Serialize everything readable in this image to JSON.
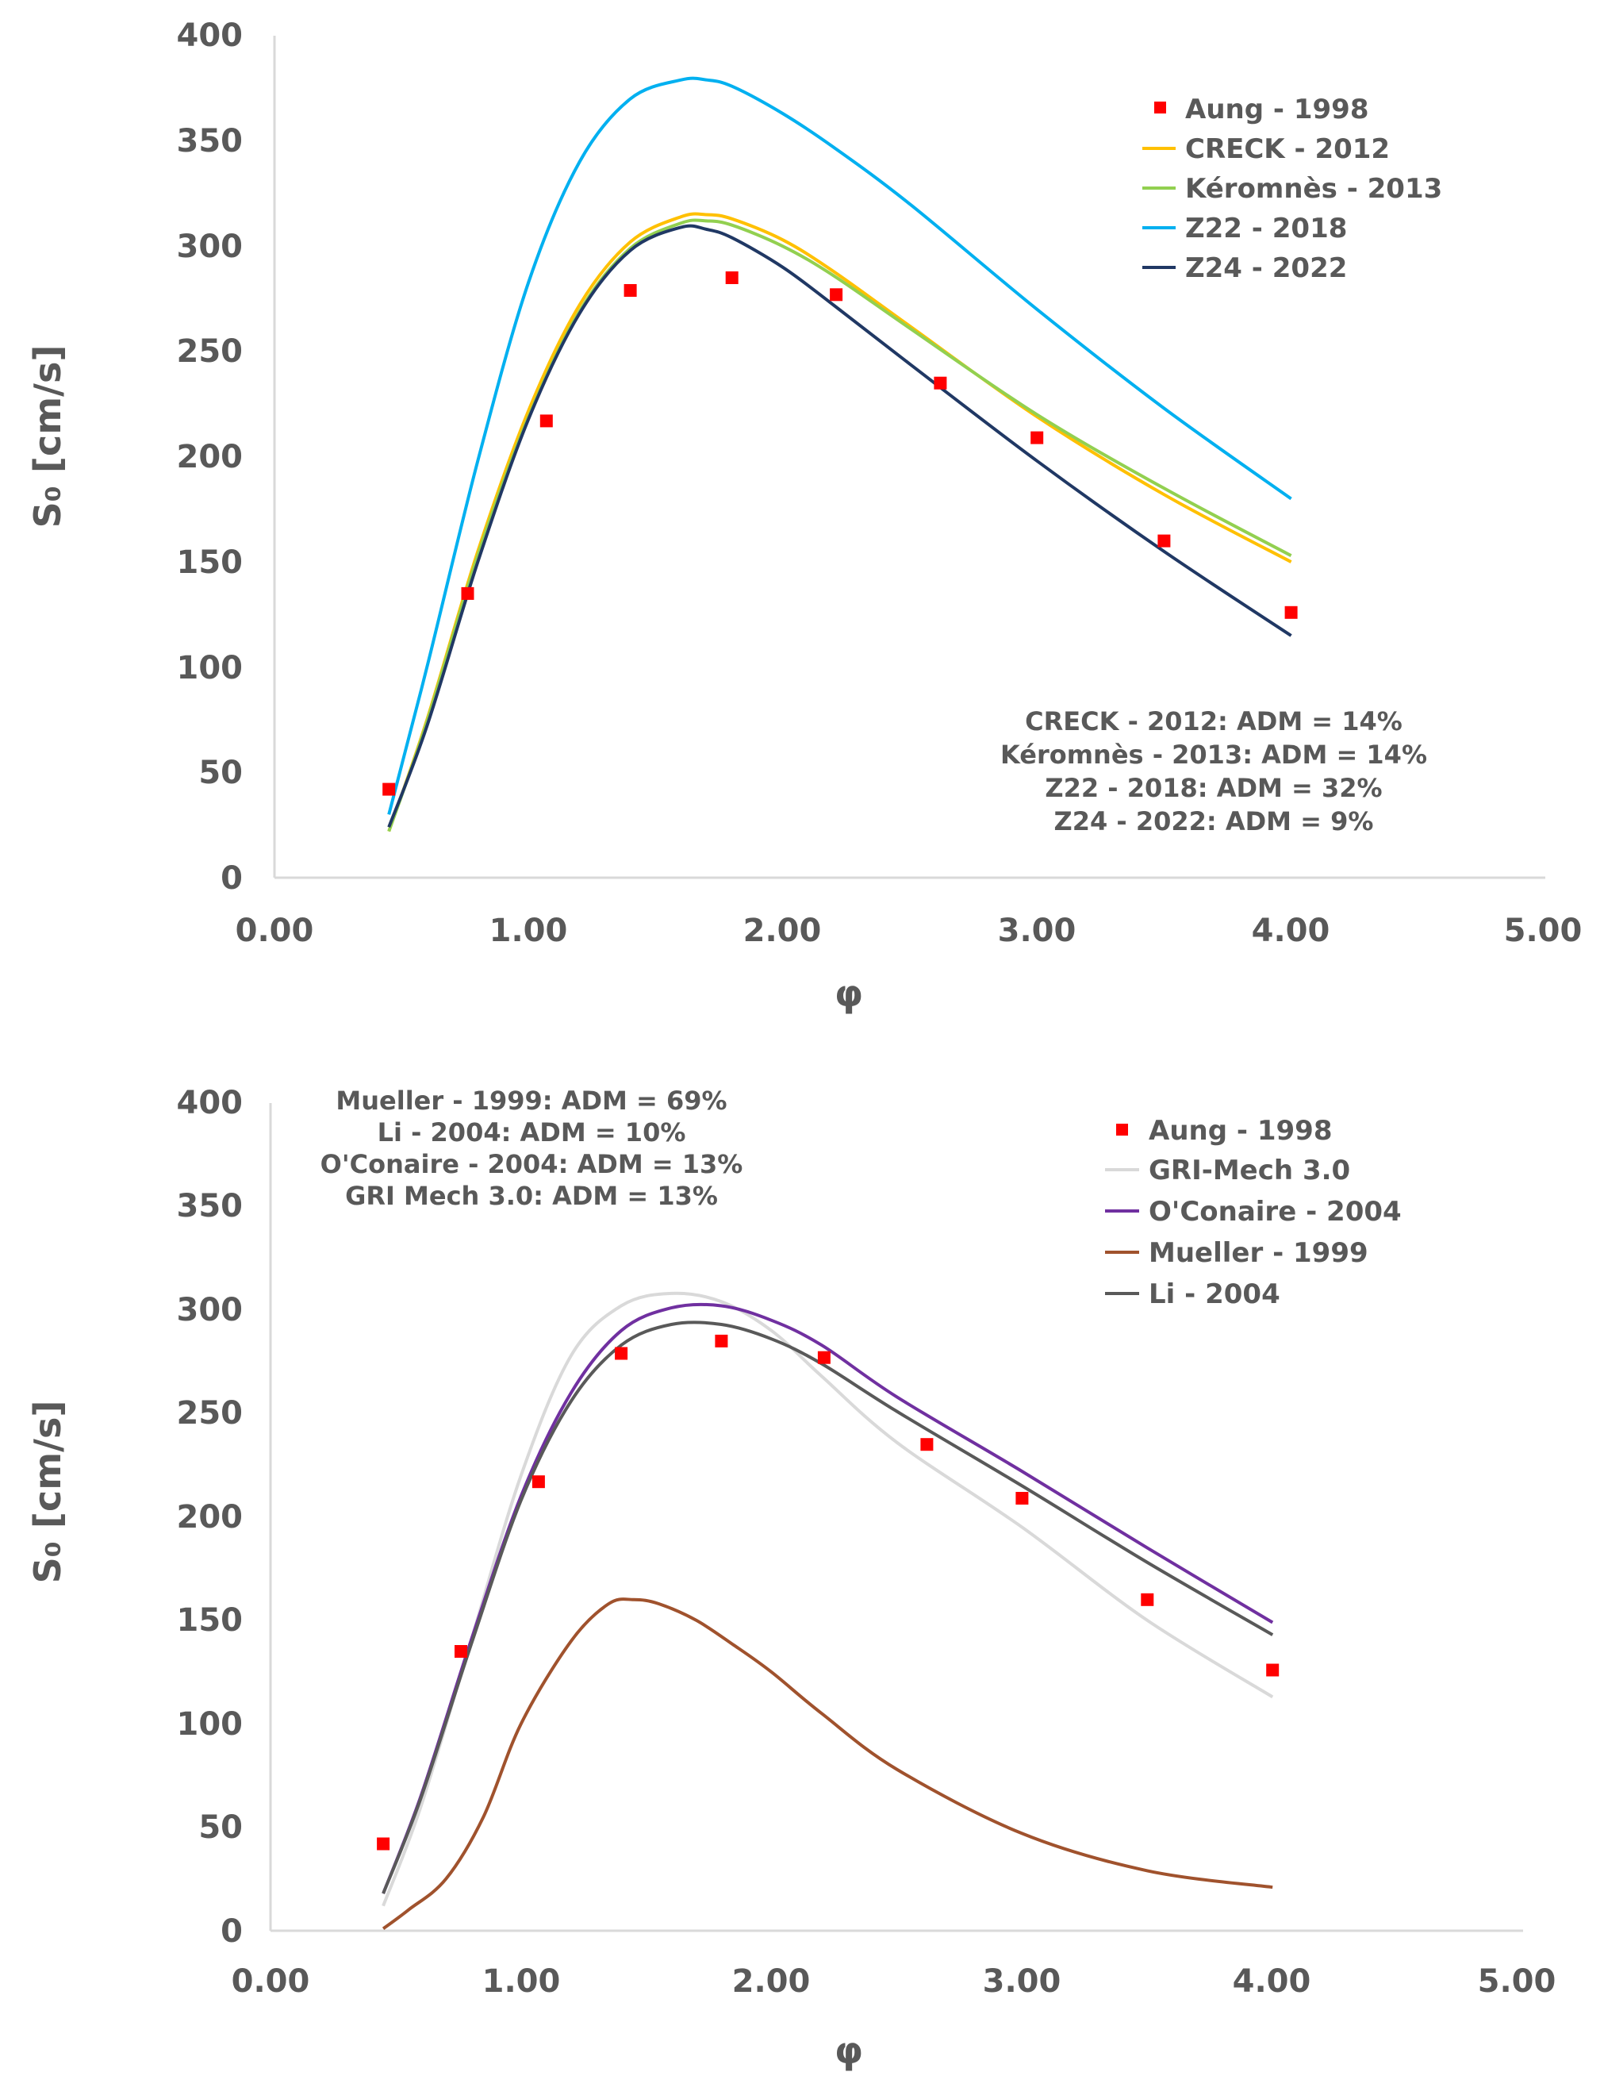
{
  "chart_data": [
    {
      "type": "scatter",
      "xlabel": "φ",
      "ylabel": "S₀ [cm/s]",
      "xlim": [
        0,
        5
      ],
      "ylim": [
        0,
        400
      ],
      "xticks": [
        "0.00",
        "1.00",
        "2.00",
        "3.00",
        "4.00",
        "5.00"
      ],
      "yticks": [
        "0",
        "50",
        "100",
        "150",
        "200",
        "250",
        "300",
        "350",
        "400"
      ],
      "grid": false,
      "legend_position": "top-right",
      "notes": [
        "CRECK - 2012: ADM = 14%",
        "Kéromnès - 2013: ADM = 14%",
        "Z22 - 2018: ADM = 32%",
        "Z24 - 2022: ADM = 9%"
      ],
      "series": [
        {
          "name": "Aung - 1998",
          "kind": "markers",
          "color": "#ff0000",
          "x": [
            0.45,
            0.76,
            1.07,
            1.4,
            1.8,
            2.21,
            2.62,
            3.0,
            3.5,
            4.0
          ],
          "y": [
            42,
            135,
            217,
            279,
            285,
            277,
            235,
            209,
            160,
            126
          ]
        },
        {
          "name": "CRECK - 2012",
          "kind": "line",
          "color": "#ffc000",
          "x": [
            0.45,
            0.6,
            0.8,
            1.0,
            1.2,
            1.4,
            1.6,
            1.7,
            1.8,
            2.0,
            2.2,
            2.5,
            3.0,
            3.5,
            4.0
          ],
          "y": [
            22,
            75,
            155,
            222,
            272,
            302,
            314,
            315,
            313,
            303,
            288,
            262,
            219,
            182,
            150
          ]
        },
        {
          "name": "Kéromnès - 2013",
          "kind": "line",
          "color": "#92d050",
          "x": [
            0.45,
            0.6,
            0.8,
            1.0,
            1.2,
            1.4,
            1.6,
            1.7,
            1.8,
            2.0,
            2.2,
            2.5,
            3.0,
            3.5,
            4.0
          ],
          "y": [
            22,
            74,
            153,
            219,
            269,
            299,
            311,
            312,
            310,
            300,
            286,
            261,
            220,
            185,
            153
          ]
        },
        {
          "name": "Z22 - 2018",
          "kind": "line",
          "color": "#00b0f0",
          "x": [
            0.45,
            0.6,
            0.8,
            1.0,
            1.2,
            1.4,
            1.6,
            1.7,
            1.8,
            2.0,
            2.2,
            2.5,
            3.0,
            3.5,
            4.0
          ],
          "y": [
            30,
            100,
            198,
            283,
            340,
            370,
            379,
            379,
            376,
            363,
            347,
            320,
            270,
            223,
            180
          ]
        },
        {
          "name": "Z24 - 2022",
          "kind": "line",
          "color": "#203864",
          "x": [
            0.45,
            0.6,
            0.8,
            1.0,
            1.2,
            1.4,
            1.6,
            1.7,
            1.8,
            2.0,
            2.2,
            2.5,
            3.0,
            3.5,
            4.0
          ],
          "y": [
            24,
            72,
            150,
            218,
            268,
            298,
            309,
            308,
            304,
            290,
            272,
            244,
            198,
            155,
            115
          ]
        }
      ]
    },
    {
      "type": "scatter",
      "xlabel": "φ",
      "ylabel": "S₀ [cm/s]",
      "xlim": [
        0,
        5
      ],
      "ylim": [
        0,
        400
      ],
      "xticks": [
        "0.00",
        "1.00",
        "2.00",
        "3.00",
        "4.00",
        "5.00"
      ],
      "yticks": [
        "0",
        "50",
        "100",
        "150",
        "200",
        "250",
        "300",
        "350",
        "400"
      ],
      "grid": false,
      "legend_position": "top-right",
      "notes": [
        "Mueller - 1999: ADM = 69%",
        "Li - 2004: ADM = 10%",
        "O'Conaire - 2004: ADM = 13%",
        "GRI Mech 3.0: ADM = 13%"
      ],
      "series": [
        {
          "name": "Aung - 1998",
          "kind": "markers",
          "color": "#ff0000",
          "x": [
            0.45,
            0.76,
            1.07,
            1.4,
            1.8,
            2.21,
            2.62,
            3.0,
            3.5,
            4.0
          ],
          "y": [
            42,
            135,
            217,
            279,
            285,
            277,
            235,
            209,
            160,
            126
          ]
        },
        {
          "name": "GRI-Mech 3.0",
          "kind": "line",
          "color": "#d9d9d9",
          "x": [
            0.45,
            0.6,
            0.8,
            1.0,
            1.2,
            1.4,
            1.6,
            1.8,
            2.0,
            2.2,
            2.5,
            3.0,
            3.5,
            4.0
          ],
          "y": [
            12,
            60,
            140,
            220,
            278,
            302,
            308,
            304,
            290,
            268,
            236,
            195,
            150,
            113
          ]
        },
        {
          "name": "O'Conaire - 2004",
          "kind": "line",
          "color": "#7030a0",
          "x": [
            0.45,
            0.6,
            0.8,
            1.0,
            1.2,
            1.4,
            1.6,
            1.8,
            2.0,
            2.2,
            2.5,
            3.0,
            3.5,
            4.0
          ],
          "y": [
            18,
            65,
            140,
            210,
            260,
            290,
            301,
            302,
            295,
            283,
            258,
            222,
            185,
            149
          ]
        },
        {
          "name": "Mueller - 1999",
          "kind": "line",
          "color": "#a0522d",
          "x": [
            0.45,
            0.55,
            0.7,
            0.85,
            1.0,
            1.2,
            1.35,
            1.45,
            1.55,
            1.7,
            1.85,
            2.0,
            2.2,
            2.5,
            3.0,
            3.5,
            4.0
          ],
          "y": [
            1,
            10,
            25,
            55,
            100,
            140,
            158,
            160,
            158,
            150,
            138,
            125,
            105,
            78,
            47,
            29,
            21
          ]
        },
        {
          "name": "Li - 2004",
          "kind": "line",
          "color": "#595959",
          "x": [
            0.45,
            0.6,
            0.8,
            1.0,
            1.2,
            1.4,
            1.6,
            1.8,
            2.0,
            2.2,
            2.5,
            3.0,
            3.5,
            4.0
          ],
          "y": [
            18,
            64,
            138,
            208,
            256,
            283,
            293,
            293,
            286,
            274,
            251,
            215,
            178,
            143
          ]
        }
      ]
    }
  ]
}
